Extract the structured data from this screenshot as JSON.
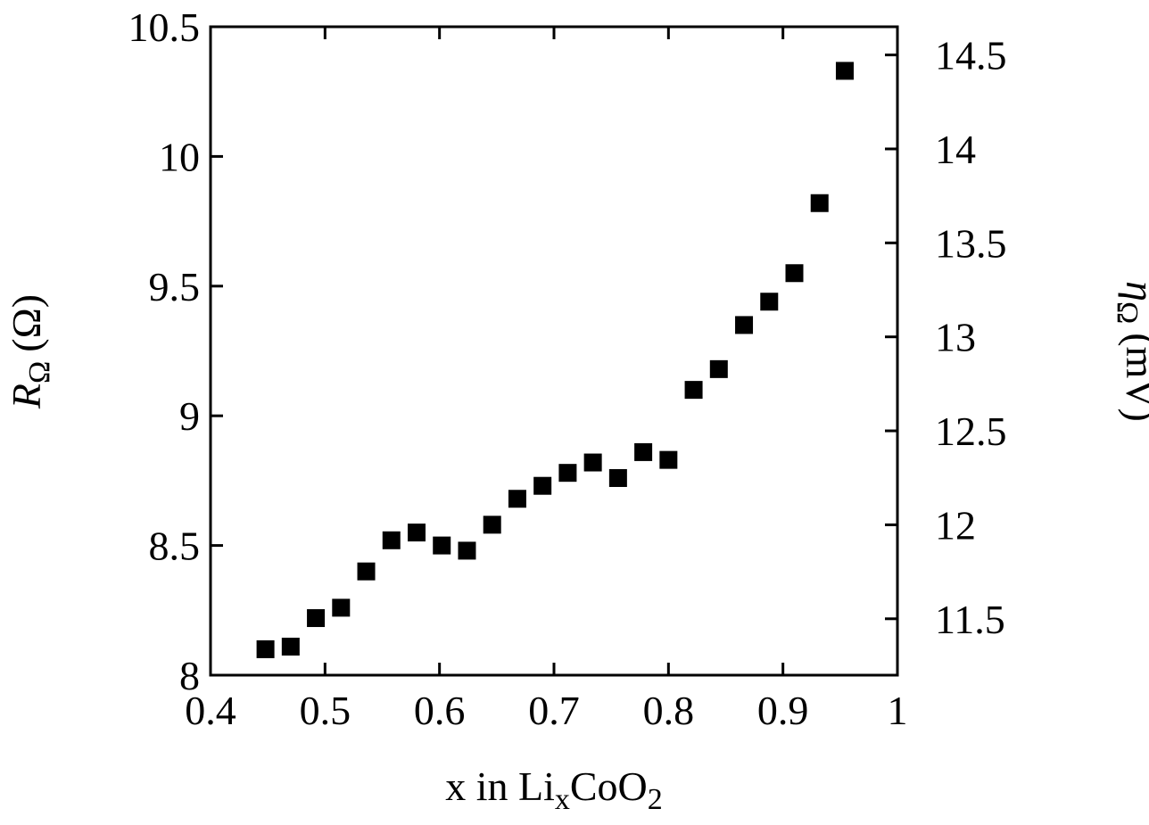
{
  "chart_data": {
    "type": "scatter",
    "title": "",
    "xlabel": {
      "main": "x in Li",
      "sub1": "x",
      "mid": "CoO",
      "sub2": "2"
    },
    "ylabel": {
      "main": "R",
      "sub": "Ω",
      "unit": "(Ω)"
    },
    "y2label": {
      "main": "η",
      "sub": "Ω",
      "unit": "(mV)"
    },
    "xlim": [
      0.4,
      1.0
    ],
    "ylim": [
      8.0,
      10.5
    ],
    "y2lim": [
      11.2,
      14.65
    ],
    "xticks": [
      "0.4",
      "0.5",
      "0.6",
      "0.7",
      "0.8",
      "0.9",
      "1"
    ],
    "xtick_values": [
      0.4,
      0.5,
      0.6,
      0.7,
      0.8,
      0.9,
      1.0
    ],
    "yticks": [
      "8",
      "8.5",
      "9",
      "9.5",
      "10",
      "10.5"
    ],
    "ytick_values": [
      8.0,
      8.5,
      9.0,
      9.5,
      10.0,
      10.5
    ],
    "y2ticks": [
      "11.5",
      "12",
      "12.5",
      "13",
      "13.5",
      "14",
      "14.5"
    ],
    "y2tick_values": [
      11.5,
      12.0,
      12.5,
      13.0,
      13.5,
      14.0,
      14.5
    ],
    "grid": false,
    "legend": "none",
    "marker": "square",
    "x": [
      0.448,
      0.47,
      0.492,
      0.514,
      0.536,
      0.558,
      0.58,
      0.602,
      0.624,
      0.646,
      0.668,
      0.69,
      0.712,
      0.734,
      0.756,
      0.778,
      0.8,
      0.822,
      0.844,
      0.866,
      0.888,
      0.91,
      0.932,
      0.954
    ],
    "y": [
      8.1,
      8.11,
      8.22,
      8.26,
      8.4,
      8.52,
      8.55,
      8.5,
      8.48,
      8.58,
      8.68,
      8.73,
      8.78,
      8.82,
      8.76,
      8.86,
      8.83,
      9.1,
      9.18,
      9.35,
      9.44,
      9.55,
      9.82,
      10.33
    ]
  }
}
